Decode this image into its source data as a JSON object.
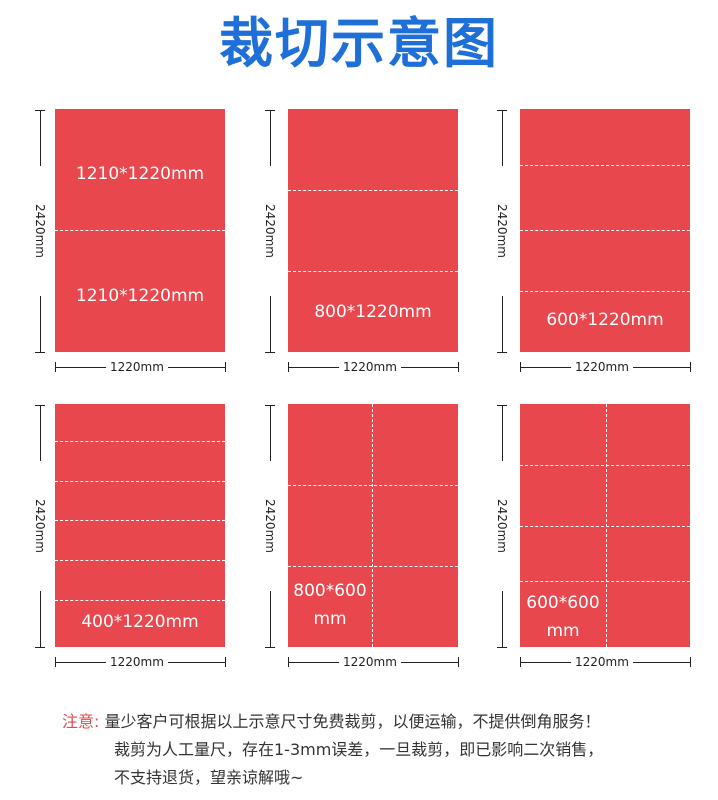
{
  "title": "裁切示意图",
  "dims": {
    "height": "2420mm",
    "width": "1220mm"
  },
  "panels": [
    {
      "labels": [
        "1210*1220mm",
        "1210*1220mm"
      ]
    },
    {
      "labels": [
        "800*1220mm"
      ]
    },
    {
      "labels": [
        "600*1220mm"
      ]
    },
    {
      "labels": [
        "400*1220mm"
      ]
    },
    {
      "labels": [
        "800*600",
        "mm"
      ]
    },
    {
      "labels": [
        "600*600",
        "mm"
      ]
    }
  ],
  "notes": {
    "tag": "注意:",
    "line1": "量少客户可根据以上示意尺寸免费裁剪，以便运输，不提供倒角服务！",
    "line2": "裁剪为人工量尺，存在1-3mm误差，一旦裁剪，即已影响二次销售，",
    "line3": "不支持退货，望亲谅解哦~"
  },
  "colors": {
    "title": "#1f6fd8",
    "sheet": "#e8474d",
    "cut_line": "#ffffff",
    "note_tag": "#e8474d"
  }
}
